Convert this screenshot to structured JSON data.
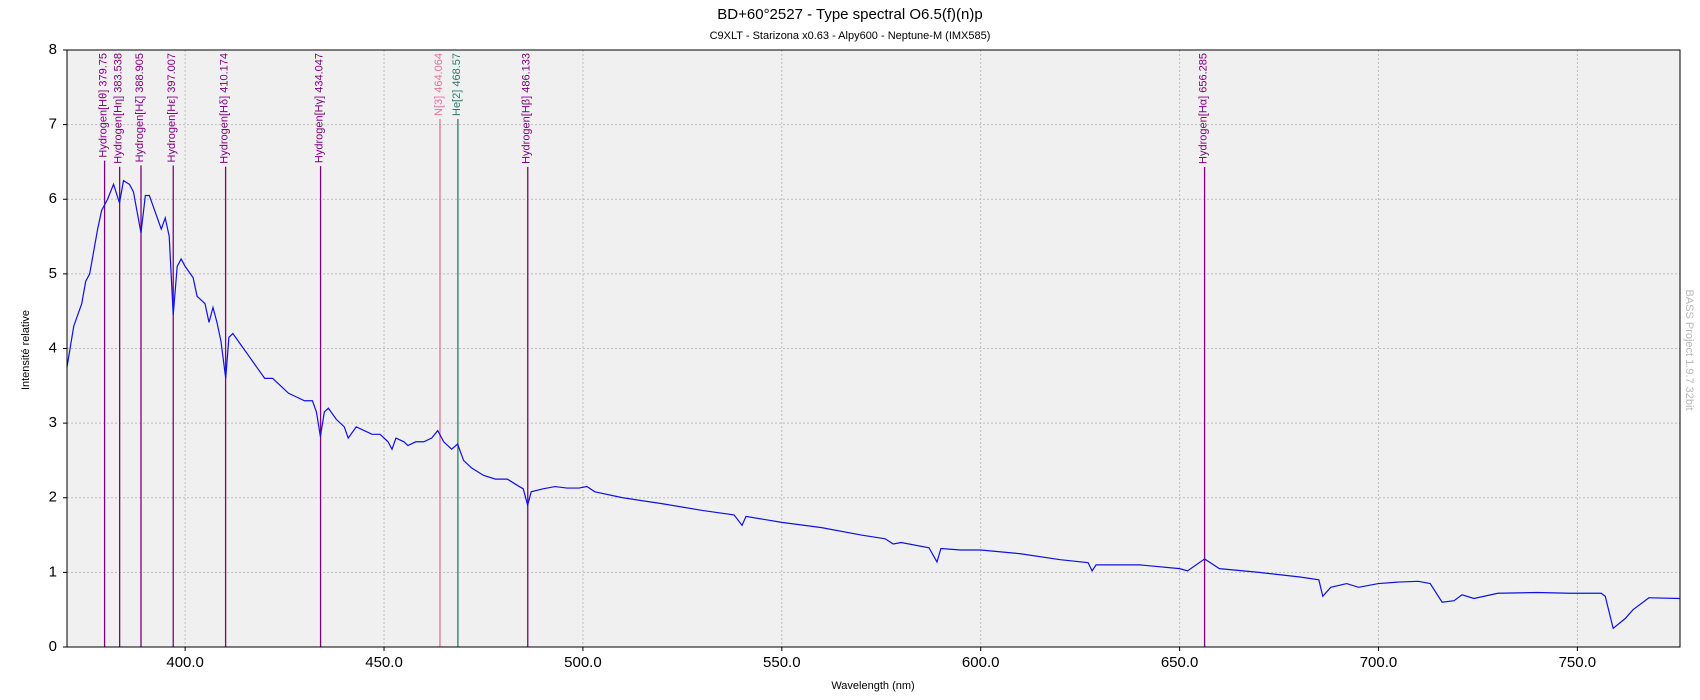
{
  "chart_data": {
    "type": "line",
    "title": "BD+60°2527 - Type spectral O6.5(f)(n)p",
    "subtitle": "C9XLT - Starizona x0.63 - Alpy600 - Neptune-M (IMX585)",
    "x_label": "Wavelength (nm)",
    "y_label": "Intensité relative",
    "watermark": "BASS Project 1.9.7  32bit",
    "xlim": [
      370.3,
      775.8
    ],
    "ylim": [
      0,
      8
    ],
    "xticks": [
      {
        "value": 400,
        "label": "400.0"
      },
      {
        "value": 450,
        "label": "450.0"
      },
      {
        "value": 500,
        "label": "500.0"
      },
      {
        "value": 550,
        "label": "550.0"
      },
      {
        "value": 600,
        "label": "600.0"
      },
      {
        "value": 650,
        "label": "650.0"
      },
      {
        "value": 700,
        "label": "700.0"
      },
      {
        "value": 750,
        "label": "750.0"
      }
    ],
    "yticks": [
      0,
      1,
      2,
      3,
      4,
      5,
      6,
      7,
      8
    ],
    "grid": true,
    "x": [
      370.3,
      372,
      374,
      375,
      376,
      377,
      378,
      379,
      380,
      380.5,
      382,
      383.5,
      384.5,
      386,
      387,
      388.9,
      390,
      391,
      392,
      394,
      395,
      396,
      397,
      398,
      399,
      400,
      402,
      403,
      404,
      405,
      406,
      407,
      408,
      409,
      410.2,
      411,
      412,
      414,
      416,
      418,
      420,
      422,
      424,
      426,
      428,
      430,
      432,
      433,
      434,
      435,
      436,
      438,
      440,
      441,
      443,
      445,
      447,
      449,
      451,
      452,
      453,
      455,
      456,
      458,
      460,
      462,
      463.5,
      465,
      467,
      468.5,
      470,
      472,
      475,
      478,
      481,
      484,
      485,
      486.1,
      487,
      490,
      493,
      496,
      499,
      501,
      503,
      510,
      520,
      530,
      538,
      540,
      541,
      550,
      560,
      570,
      576,
      578,
      580,
      587,
      589,
      590,
      595,
      600,
      610,
      620,
      627,
      628,
      629,
      640,
      650,
      652,
      656.3,
      660,
      670,
      680,
      685,
      686,
      688,
      692,
      695,
      700,
      705,
      710,
      713,
      716,
      719,
      721,
      724,
      730,
      740,
      748,
      756,
      757,
      759,
      762,
      764,
      768,
      775.8
    ],
    "series": [
      {
        "color": "#1010e0",
        "values": [
          3.75,
          4.3,
          4.6,
          4.9,
          5.0,
          5.3,
          5.6,
          5.85,
          5.95,
          6.0,
          6.2,
          5.95,
          6.25,
          6.2,
          6.1,
          5.55,
          6.05,
          6.05,
          5.9,
          5.6,
          5.75,
          5.5,
          4.45,
          5.1,
          5.2,
          5.1,
          4.95,
          4.7,
          4.65,
          4.6,
          4.35,
          4.55,
          4.35,
          4.1,
          3.6,
          4.15,
          4.2,
          4.05,
          3.9,
          3.75,
          3.6,
          3.6,
          3.5,
          3.4,
          3.35,
          3.3,
          3.3,
          3.15,
          2.82,
          3.15,
          3.2,
          3.05,
          2.95,
          2.8,
          2.95,
          2.9,
          2.85,
          2.85,
          2.75,
          2.65,
          2.8,
          2.75,
          2.7,
          2.75,
          2.75,
          2.8,
          2.9,
          2.75,
          2.65,
          2.72,
          2.5,
          2.4,
          2.3,
          2.25,
          2.25,
          2.15,
          2.12,
          1.9,
          2.08,
          2.12,
          2.15,
          2.13,
          2.13,
          2.15,
          2.08,
          2.0,
          1.92,
          1.83,
          1.77,
          1.63,
          1.75,
          1.67,
          1.6,
          1.5,
          1.45,
          1.38,
          1.4,
          1.33,
          1.14,
          1.32,
          1.3,
          1.3,
          1.25,
          1.17,
          1.13,
          1.02,
          1.1,
          1.1,
          1.05,
          1.02,
          1.18,
          1.05,
          1.0,
          0.94,
          0.9,
          0.68,
          0.8,
          0.85,
          0.8,
          0.85,
          0.87,
          0.88,
          0.85,
          0.6,
          0.62,
          0.7,
          0.65,
          0.72,
          0.73,
          0.72,
          0.72,
          0.68,
          0.25,
          0.38,
          0.5,
          0.66,
          0.65
        ]
      }
    ],
    "annotations": [
      {
        "label": "Hydrogen[Hθ] 379.75",
        "x": 379.75,
        "color": "#800080"
      },
      {
        "label": "Hydrogen[Hη] 383.538",
        "x": 383.538,
        "color": "#800080"
      },
      {
        "label": "Hydrogen[Hζ] 388.905",
        "x": 388.905,
        "color": "#800080"
      },
      {
        "label": "Hydrogen[Hε] 397.007",
        "x": 397.007,
        "color": "#800080"
      },
      {
        "label": "Hydrogen[Hδ] 410.174",
        "x": 410.174,
        "color": "#800080"
      },
      {
        "label": "Hydrogen[Hγ] 434.047",
        "x": 434.047,
        "color": "#800080"
      },
      {
        "label": "N[3] 464.064",
        "x": 464.064,
        "color": "#e8709c"
      },
      {
        "label": "He[2] 468.57",
        "x": 468.57,
        "color": "#2e7a68"
      },
      {
        "label": "Hydrogen[Hβ] 486.133",
        "x": 486.133,
        "color": "#800080"
      },
      {
        "label": "Hydrogen[Hα] 656.285",
        "x": 656.285,
        "color": "#800080"
      }
    ]
  }
}
